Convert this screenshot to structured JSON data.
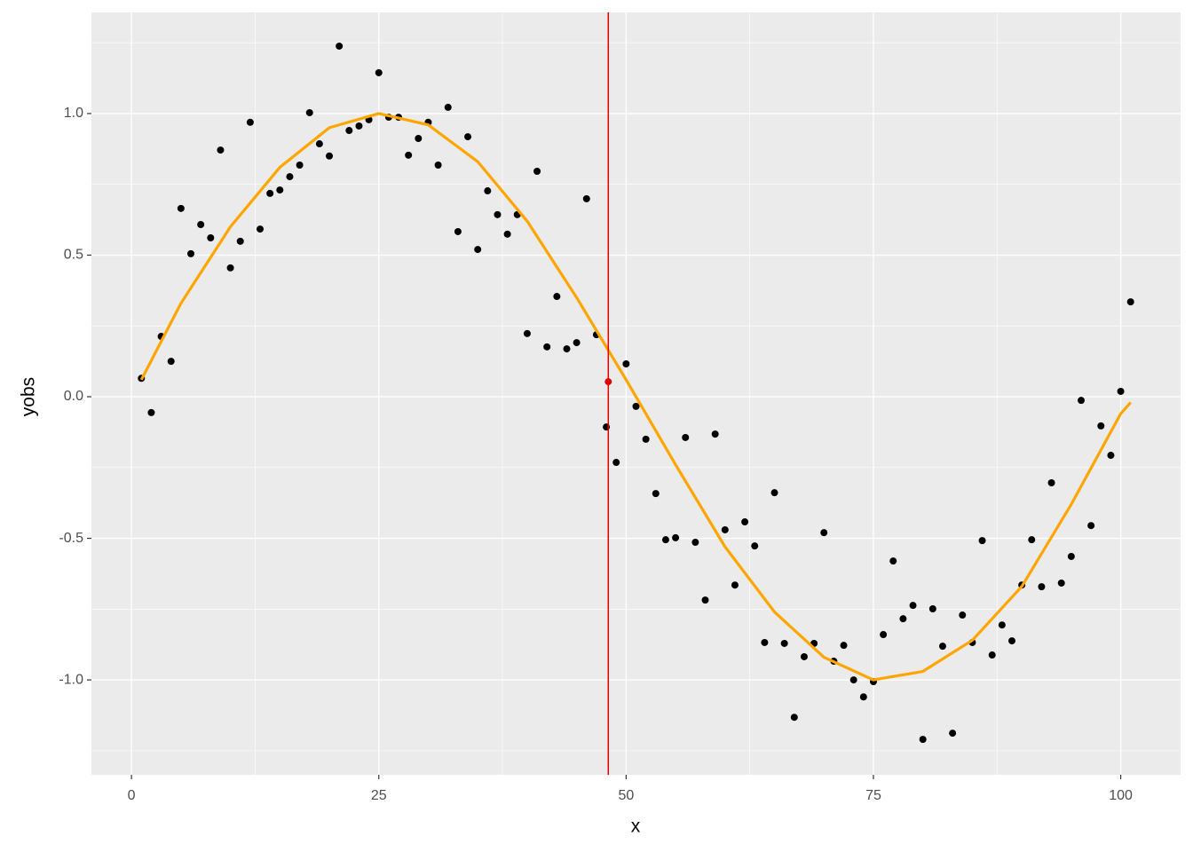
{
  "chart_data": {
    "type": "scatter",
    "x_label": "x",
    "y_label": "yobs",
    "xlim": [
      -4.05,
      106.05
    ],
    "ylim": [
      -1.335,
      1.357
    ],
    "xticks": [
      0,
      25,
      50,
      75,
      100
    ],
    "yticks": [
      {
        "value": -1,
        "label": "-1.0"
      },
      {
        "value": -0.5,
        "label": "-0.5"
      },
      {
        "value": 0,
        "label": "0.0"
      },
      {
        "value": 0.5,
        "label": "0.5"
      },
      {
        "value": 1,
        "label": "1.0"
      }
    ],
    "grid": true,
    "points": {
      "color": "#000000",
      "x": [
        1,
        2,
        3,
        4,
        5,
        6,
        7,
        8,
        9,
        10,
        11,
        12,
        13,
        14,
        15,
        16,
        17,
        18,
        19,
        20,
        21,
        22,
        23,
        24,
        25,
        26,
        27,
        28,
        29,
        30,
        31,
        32,
        33,
        34,
        35,
        36,
        37,
        38,
        39,
        40,
        41,
        42,
        43,
        44,
        45,
        46,
        47,
        48,
        49,
        50,
        51,
        52,
        53,
        54,
        55,
        56,
        57,
        58,
        59,
        60,
        61,
        62,
        63,
        64,
        65,
        66,
        67,
        68,
        69,
        70,
        71,
        72,
        73,
        74,
        75,
        76,
        77,
        78,
        79,
        80,
        81,
        82,
        83,
        84,
        85,
        86,
        87,
        88,
        89,
        90,
        91,
        92,
        93,
        94,
        95,
        96,
        97,
        98,
        99,
        100,
        101
      ],
      "y": [
        0.065,
        -0.056,
        0.213,
        0.125,
        0.665,
        0.505,
        0.608,
        0.561,
        0.871,
        0.455,
        0.549,
        0.969,
        0.592,
        0.718,
        0.73,
        0.777,
        0.818,
        1.003,
        0.893,
        0.85,
        1.238,
        0.94,
        0.956,
        0.978,
        1.144,
        0.987,
        0.987,
        0.853,
        0.912,
        0.969,
        0.818,
        1.022,
        0.583,
        0.918,
        0.52,
        0.727,
        0.643,
        0.574,
        0.643,
        0.223,
        0.796,
        0.176,
        0.354,
        0.169,
        0.191,
        0.699,
        0.219,
        -0.107,
        -0.232,
        0.116,
        -0.034,
        -0.15,
        -0.342,
        -0.505,
        -0.498,
        -0.144,
        -0.514,
        -0.718,
        -0.132,
        -0.47,
        -0.665,
        -0.442,
        -0.527,
        -0.868,
        -0.339,
        -0.871,
        -1.132,
        -0.918,
        -0.871,
        -0.48,
        -0.934,
        -0.878,
        -1.0,
        -1.06,
        -1.006,
        -0.84,
        -0.58,
        -0.784,
        -0.737,
        -1.21,
        -0.749,
        -0.881,
        -1.188,
        -0.771,
        -0.868,
        -0.508,
        -0.912,
        -0.806,
        -0.862,
        -0.665,
        -0.505,
        -0.671,
        -0.304,
        -0.658,
        -0.564,
        -0.013,
        -0.455,
        -0.103,
        -0.207,
        0.019,
        0.335
      ]
    },
    "curve": {
      "color": "#ffa500",
      "x": [
        1,
        5,
        10,
        15,
        20,
        25,
        30,
        35,
        40,
        45,
        50,
        55,
        60,
        65,
        70,
        75,
        80,
        85,
        90,
        95,
        100,
        101
      ],
      "y": [
        0.06,
        0.33,
        0.6,
        0.81,
        0.95,
        1.0,
        0.96,
        0.83,
        0.62,
        0.35,
        0.06,
        -0.24,
        -0.53,
        -0.76,
        -0.92,
        -1.0,
        -0.97,
        -0.86,
        -0.67,
        -0.38,
        -0.06,
        -0.02
      ]
    },
    "vline": {
      "x": 48.2,
      "color": "#e00000"
    },
    "highlight": {
      "x": 48.2,
      "y": 0.053,
      "color": "#e00000"
    }
  }
}
